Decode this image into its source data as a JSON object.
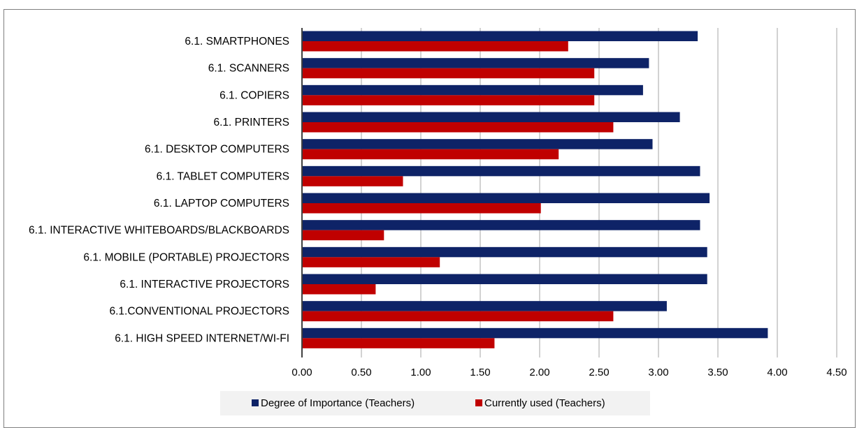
{
  "chart_data": {
    "type": "bar",
    "orientation": "horizontal",
    "categories": [
      "6.1.  SMARTPHONES",
      "6.1. SCANNERS",
      "6.1. COPIERS",
      "6.1. PRINTERS",
      "6.1. DESKTOP COMPUTERS",
      "6.1.  TABLET COMPUTERS",
      "6.1. LAPTOP COMPUTERS",
      "6.1. INTERACTIVE WHITEBOARDS/BLACKBOARDS",
      "6.1.  MOBILE (PORTABLE) PROJECTORS",
      "6.1. INTERACTIVE PROJECTORS",
      "6.1.CONVENTIONAL PROJECTORS",
      "6.1. HIGH SPEED INTERNET/WI-FI"
    ],
    "series": [
      {
        "name": "Degree of Importance (Teachers)",
        "color": "#0e2367",
        "values": [
          3.33,
          2.92,
          2.87,
          3.18,
          2.95,
          3.35,
          3.43,
          3.35,
          3.41,
          3.41,
          3.07,
          3.92
        ]
      },
      {
        "name": "Currently used (Teachers)",
        "color": "#c00000",
        "values": [
          2.24,
          2.46,
          2.46,
          2.62,
          2.16,
          0.85,
          2.01,
          0.69,
          1.16,
          0.62,
          2.62,
          1.62
        ]
      }
    ],
    "xlim": [
      0,
      4.5
    ],
    "xticks": [
      "0.00",
      "0.50",
      "1.00",
      "1.50",
      "2.00",
      "2.50",
      "3.00",
      "3.50",
      "4.00",
      "4.50"
    ],
    "grid": "vertical",
    "legend_position": "bottom",
    "title": "",
    "xlabel": "",
    "ylabel": ""
  }
}
